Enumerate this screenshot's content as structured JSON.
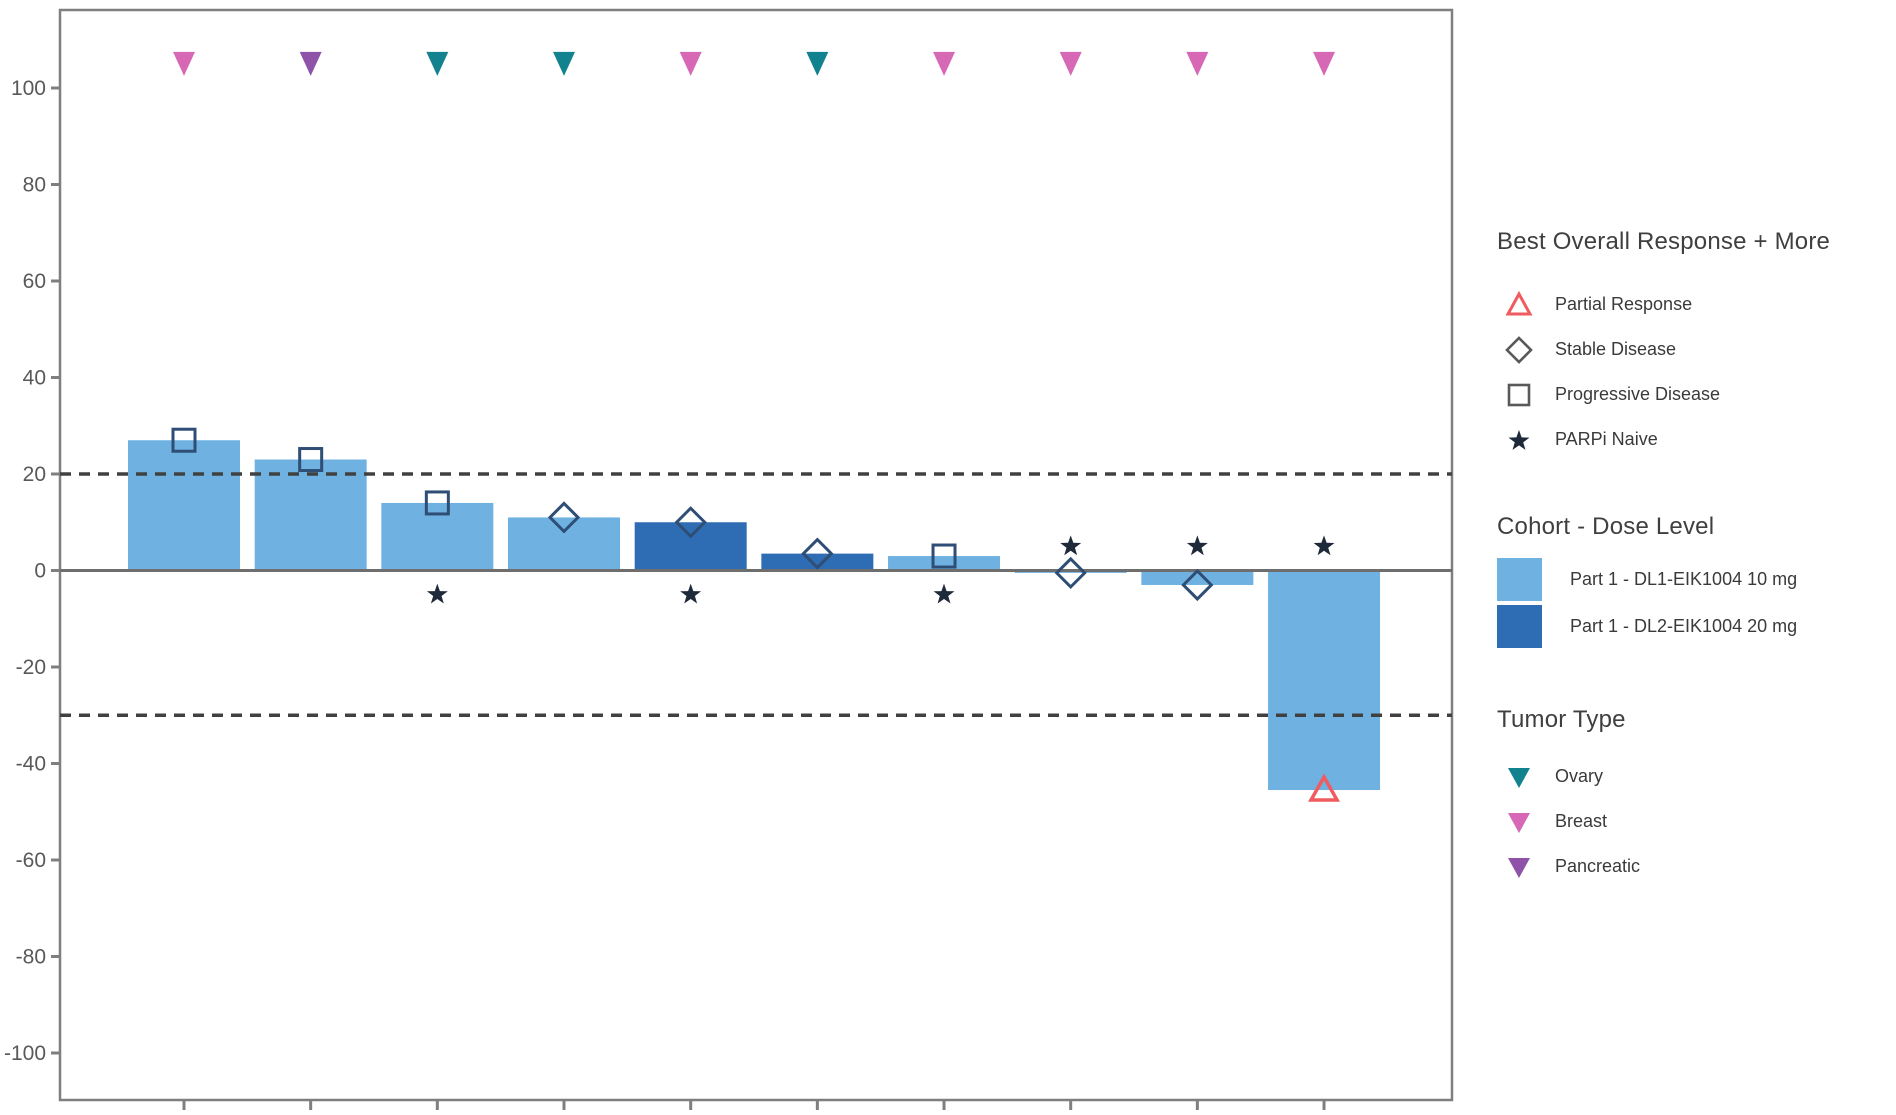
{
  "colors": {
    "light_blue": "#6FB2E2",
    "dark_blue": "#2E6DB4",
    "pink": "#D668B6",
    "purple": "#8E52A8",
    "teal": "#13828F",
    "red": "#EF5B5E",
    "open_marker_stroke": "#2E4E75",
    "star_fill": "#1E2A3A",
    "dashed_line": "#404040",
    "zero_line": "#6E6E6E",
    "frame": "#7F7F7F",
    "tick_text": "#595959"
  },
  "chart_data": {
    "type": "bar",
    "subtype": "waterfall",
    "title": "",
    "xlabel": "",
    "ylabel": "",
    "ylim": [
      -100,
      110
    ],
    "yticks": [
      100,
      80,
      60,
      40,
      20,
      0,
      -20,
      -40,
      -60,
      -80,
      -100
    ],
    "reference_lines": [
      20,
      -30
    ],
    "grid": false,
    "legend_position": "right",
    "tumor_marker_row_value": 105,
    "naive_star_offset_above": 5,
    "naive_star_offset_below": -5,
    "bars": [
      {
        "value": 27,
        "cohort": "DL1",
        "response": "Progressive Disease",
        "parpi_naive": false,
        "naive_star": null,
        "tumor": "Breast"
      },
      {
        "value": 23,
        "cohort": "DL1",
        "response": "Progressive Disease",
        "parpi_naive": false,
        "naive_star": null,
        "tumor": "Pancreatic"
      },
      {
        "value": 14,
        "cohort": "DL1",
        "response": "Progressive Disease",
        "parpi_naive": true,
        "naive_star": "below",
        "tumor": "Ovary"
      },
      {
        "value": 11,
        "cohort": "DL1",
        "response": "Stable Disease",
        "parpi_naive": false,
        "naive_star": null,
        "tumor": "Ovary"
      },
      {
        "value": 10,
        "cohort": "DL2",
        "response": "Stable Disease",
        "parpi_naive": true,
        "naive_star": "below",
        "tumor": "Breast"
      },
      {
        "value": 3.5,
        "cohort": "DL2",
        "response": "Stable Disease",
        "parpi_naive": false,
        "naive_star": null,
        "tumor": "Ovary"
      },
      {
        "value": 3,
        "cohort": "DL1",
        "response": "Progressive Disease",
        "parpi_naive": true,
        "naive_star": "below",
        "tumor": "Breast"
      },
      {
        "value": -0.5,
        "cohort": "DL1",
        "response": "Stable Disease",
        "parpi_naive": true,
        "naive_star": "above",
        "tumor": "Breast"
      },
      {
        "value": -3,
        "cohort": "DL1",
        "response": "Stable Disease",
        "parpi_naive": true,
        "naive_star": "above",
        "tumor": "Breast"
      },
      {
        "value": -45.5,
        "cohort": "DL1",
        "response": "Partial Response",
        "parpi_naive": true,
        "naive_star": "above",
        "tumor": "Breast"
      }
    ]
  },
  "legend_bor": {
    "title": "Best Overall Response + More",
    "items": [
      {
        "label": "Partial Response",
        "icon": "triangle-open",
        "color_key": "red"
      },
      {
        "label": "Stable Disease",
        "icon": "diamond-open",
        "color_key": "tick_text"
      },
      {
        "label": "Progressive Disease",
        "icon": "square-open",
        "color_key": "tick_text"
      },
      {
        "label": "PARPi Naive",
        "icon": "star-filled",
        "color_key": "star_fill"
      }
    ]
  },
  "legend_cohort": {
    "title": "Cohort - Dose Level",
    "items": [
      {
        "label": "Part 1 - DL1-EIK1004 10 mg",
        "color_key": "light_blue"
      },
      {
        "label": "Part 1 - DL2-EIK1004 20 mg",
        "color_key": "dark_blue"
      }
    ]
  },
  "legend_tumor": {
    "title": "Tumor Type",
    "items": [
      {
        "label": "Ovary",
        "icon": "triangle-down-filled",
        "color_key": "teal"
      },
      {
        "label": "Breast",
        "icon": "triangle-down-filled",
        "color_key": "pink"
      },
      {
        "label": "Pancreatic",
        "icon": "triangle-down-filled",
        "color_key": "purple"
      }
    ]
  }
}
